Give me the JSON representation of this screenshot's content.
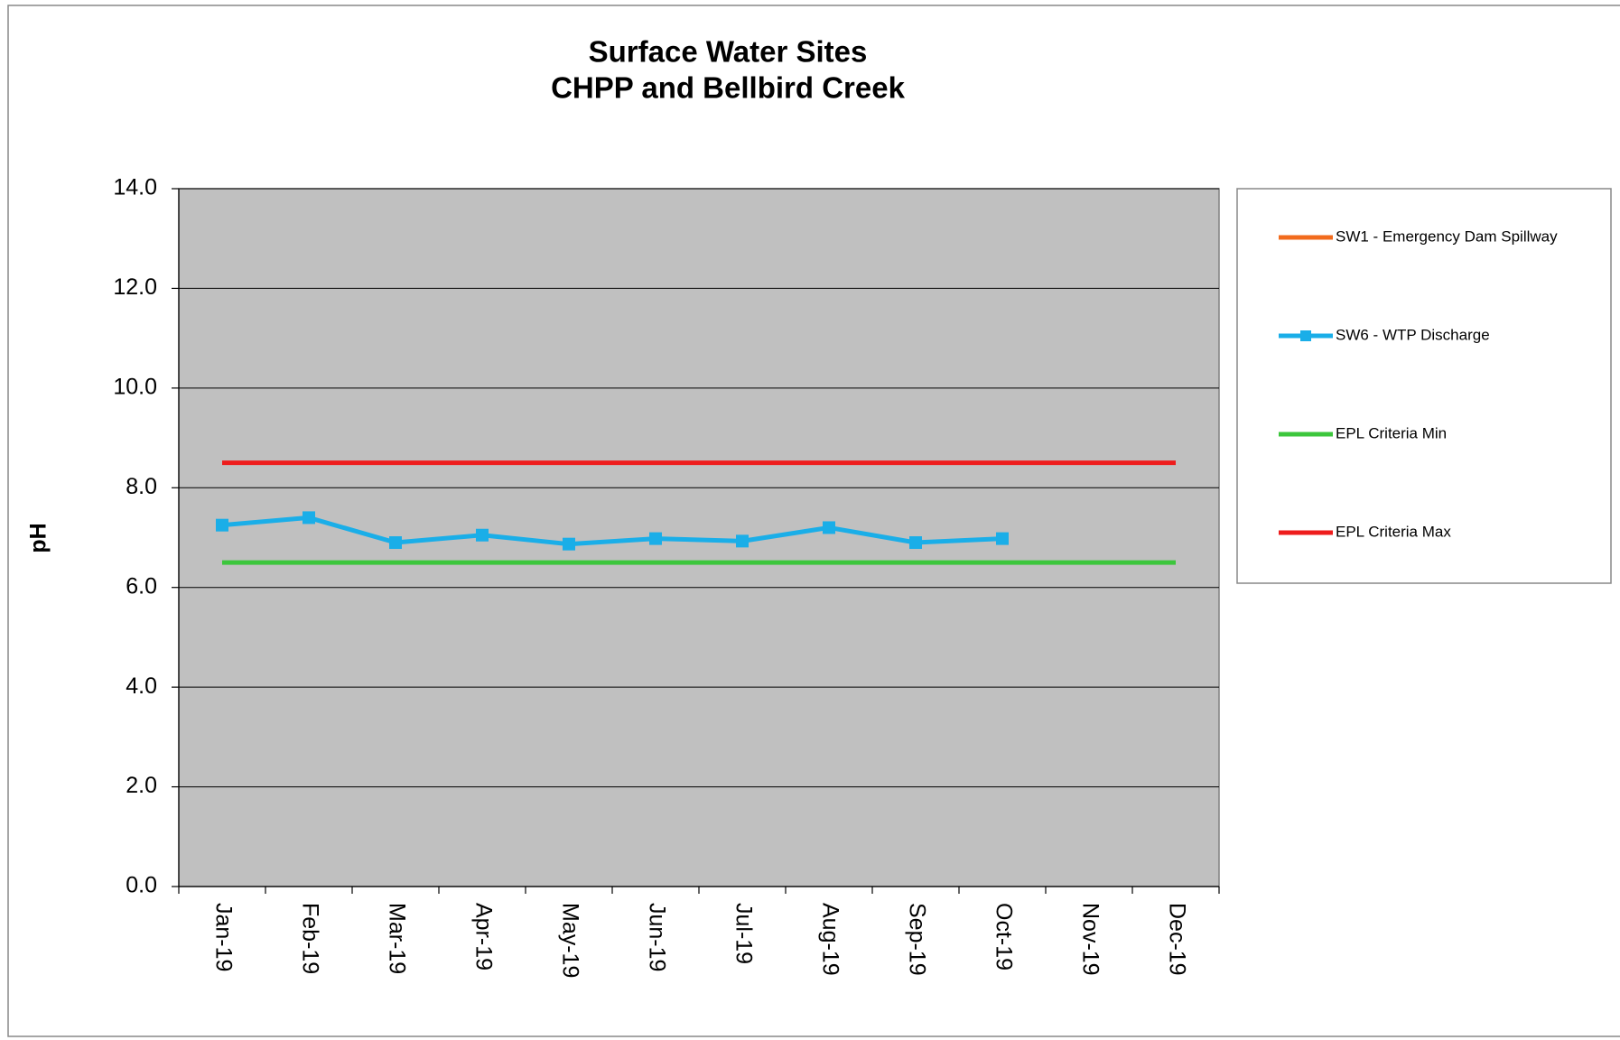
{
  "chart_data": {
    "type": "line",
    "title": [
      "Surface Water Sites",
      "CHPP and Bellbird Creek"
    ],
    "y_label": "pH",
    "categories": [
      "Jan-19",
      "Feb-19",
      "Mar-19",
      "Apr-19",
      "May-19",
      "Jun-19",
      "Jul-19",
      "Aug-19",
      "Sep-19",
      "Oct-19",
      "Nov-19",
      "Dec-19"
    ],
    "series": [
      {
        "name": "SW1 - Emergency Dam Spillway",
        "color": "#f26b1d",
        "marker": "dash",
        "values": [
          null,
          null,
          null,
          null,
          null,
          null,
          null,
          null,
          null,
          null,
          null,
          null
        ]
      },
      {
        "name": "SW6 - WTP Discharge",
        "color": "#1aaee8",
        "marker": "square",
        "values": [
          7.25,
          7.4,
          6.9,
          7.05,
          6.87,
          6.98,
          6.93,
          7.2,
          6.9,
          6.98,
          null,
          null
        ]
      },
      {
        "name": "EPL Criteria Min",
        "color": "#3cc63c",
        "marker": null,
        "values": [
          6.5,
          6.5,
          6.5,
          6.5,
          6.5,
          6.5,
          6.5,
          6.5,
          6.5,
          6.5,
          6.5,
          6.5
        ]
      },
      {
        "name": "EPL Criteria Max",
        "color": "#ee1c1c",
        "marker": null,
        "values": [
          8.5,
          8.5,
          8.5,
          8.5,
          8.5,
          8.5,
          8.5,
          8.5,
          8.5,
          8.5,
          8.5,
          8.5
        ]
      }
    ],
    "ylim": [
      0,
      14
    ],
    "yticks": [
      {
        "value": 0,
        "label": "0.0"
      },
      {
        "value": 2,
        "label": "2.0"
      },
      {
        "value": 4,
        "label": "4.0"
      },
      {
        "value": 6,
        "label": "6.0"
      },
      {
        "value": 8,
        "label": "8.0"
      },
      {
        "value": 10,
        "label": "10.0"
      },
      {
        "value": 12,
        "label": "12.0"
      },
      {
        "value": 14,
        "label": "14.0"
      }
    ],
    "grid": true,
    "legend": "right",
    "plot_background": "#c0c0c0"
  }
}
